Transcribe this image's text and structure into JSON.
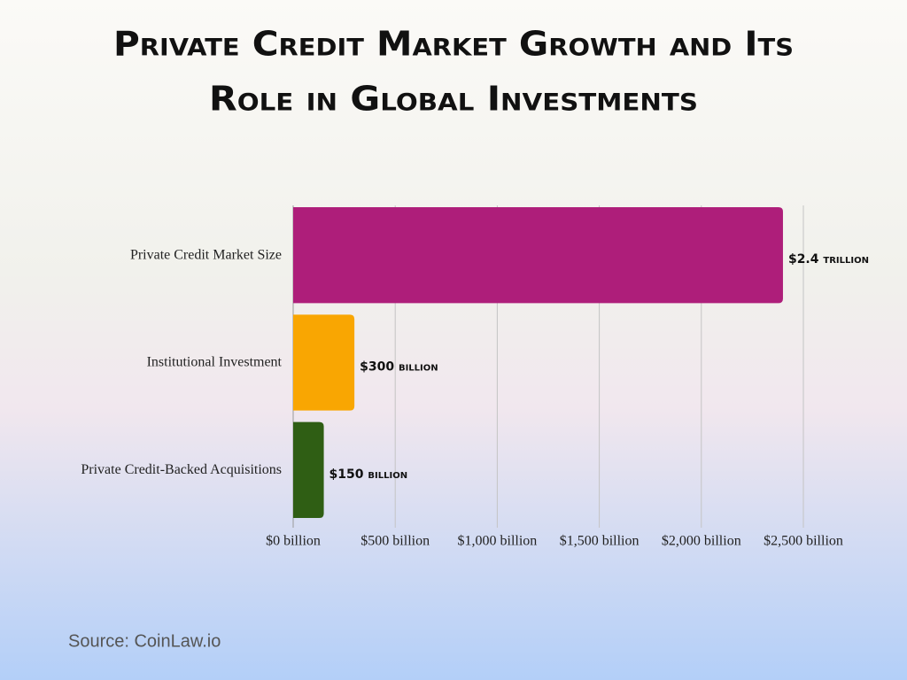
{
  "chart_data": {
    "type": "bar",
    "orientation": "horizontal",
    "title": [
      "Private Credit Market Growth and Its",
      "Role in Global Investments"
    ],
    "categories": [
      "Private Credit Market Size",
      "Institutional Investment",
      "Private Credit-Backed Acquisitions"
    ],
    "values": [
      2400,
      300,
      150
    ],
    "value_labels": [
      "$2.4 trillion",
      "$300 billion",
      "$150 billion"
    ],
    "colors": [
      "#ae1e7a",
      "#f9a602",
      "#2f5e14"
    ],
    "xlim": [
      0,
      2500
    ],
    "xticks": [
      {
        "value": 0,
        "label": "$0 billion"
      },
      {
        "value": 500,
        "label": "$500 billion"
      },
      {
        "value": 1000,
        "label": "$1,000 billion"
      },
      {
        "value": 1500,
        "label": "$1,500 billion"
      },
      {
        "value": 2000,
        "label": "$2,000 billion"
      },
      {
        "value": 2500,
        "label": "$2,500 billion"
      }
    ],
    "grid": true,
    "source": "Source: CoinLaw.io"
  }
}
